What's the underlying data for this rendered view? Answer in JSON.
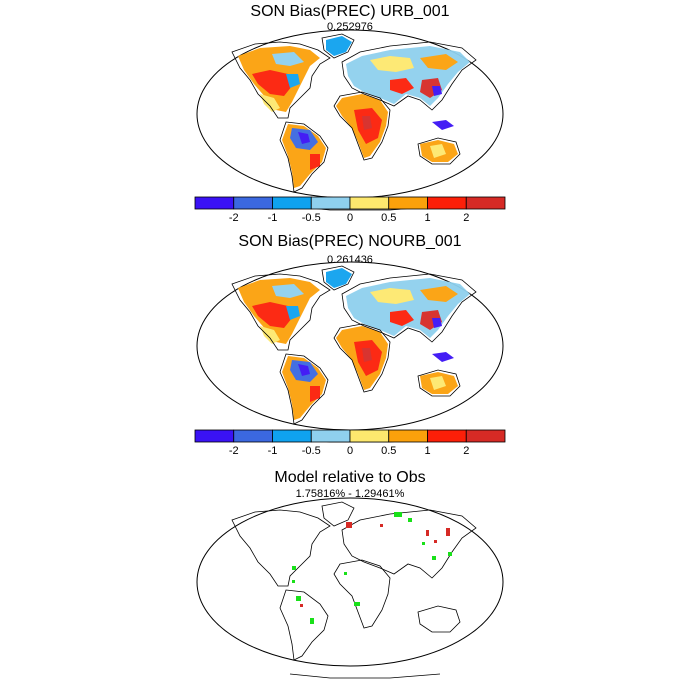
{
  "panels": [
    {
      "title": "SON Bias(PREC) URB_001",
      "subtitle": "0.252976"
    },
    {
      "title": "SON Bias(PREC) NOURB_001",
      "subtitle": "0.261436"
    },
    {
      "title": "Model relative to Obs",
      "subtitle": "1.75816% - 1.29461%"
    }
  ],
  "colorbar": {
    "colors": [
      "#3a12f5",
      "#3b68e0",
      "#0fa2ef",
      "#8fd0ee",
      "#fde86e",
      "#fba10b",
      "#fc1f08",
      "#d62a25"
    ],
    "tick_labels": [
      "-2",
      "-1",
      "-0.5",
      "0",
      "0.5",
      "1",
      "2"
    ]
  }
}
